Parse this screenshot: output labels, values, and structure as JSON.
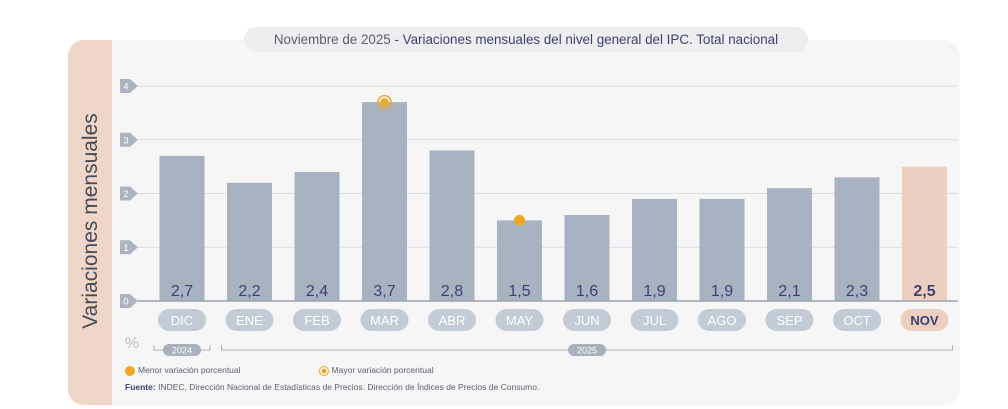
{
  "title": {
    "date": "Noviembre de 2025",
    "separator": " - ",
    "main": "Variaciones mensuales del nivel general del IPC. Total nacional"
  },
  "ylabel": "Variaciones mensuales",
  "unit": "%",
  "chart_data": {
    "type": "bar",
    "title": "Noviembre de 2025 - Variaciones mensuales del nivel general del IPC. Total nacional",
    "ylabel": "Variaciones mensuales",
    "ylim": [
      0,
      4
    ],
    "yticks": [
      "0",
      "1",
      "2",
      "3",
      "4"
    ],
    "categories": [
      "DIC",
      "ENE",
      "FEB",
      "MAR",
      "ABR",
      "MAY",
      "JUN",
      "JUL",
      "AGO",
      "SEP",
      "OCT",
      "NOV"
    ],
    "values": [
      2.7,
      2.2,
      2.4,
      3.7,
      2.8,
      1.5,
      1.6,
      1.9,
      1.9,
      2.1,
      2.3,
      2.5
    ],
    "labels": [
      "2,7",
      "2,2",
      "2,4",
      "3,7",
      "2,8",
      "1,5",
      "1,6",
      "1,9",
      "1,9",
      "2,1",
      "2,3",
      "2,5"
    ],
    "highlight_index": 11,
    "min_marker_index": 5,
    "max_marker_index": 3,
    "year_groups": [
      {
        "label": "2024",
        "start": 0,
        "end": 0
      },
      {
        "label": "2025",
        "start": 1,
        "end": 11
      }
    ],
    "colors": {
      "bar": "#a8b3c1",
      "highlight": "#edcfc0",
      "tick_pill": "#c3cbd6",
      "tick_pill_highlight": "#edcfc0",
      "marker": "#f2a81f",
      "value_text": "#3c4270"
    }
  },
  "legend": {
    "min_label": "Menor variación porcentual",
    "max_label": "Mayor variación porcentual"
  },
  "source": {
    "label": "Fuente:",
    "text": " INDEC, Dirección Nacional de Estadísticas de Precios. Dirección de Índices de Precios de Consumo."
  }
}
